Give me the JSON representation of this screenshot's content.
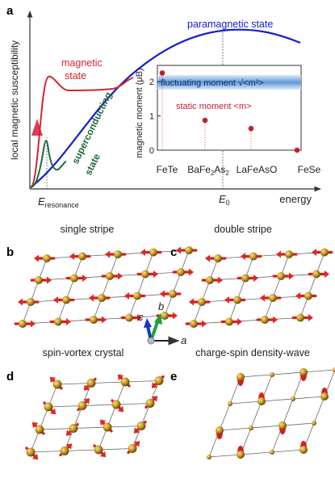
{
  "panel_a": {
    "letter": "a",
    "y_axis_label": "local magnetic susceptibility",
    "x_axis_label": "energy",
    "e_res_main": "E",
    "e_res_sub": "resonance",
    "e0_main": "E",
    "e0_sub": "0",
    "paramagnetic_label": "paramagnetic state",
    "magnetic_label_1": "magnetic",
    "magnetic_label_2": "state",
    "sc_label_1": "superconducting",
    "sc_label_2": "state",
    "colors": {
      "paramagnetic": "#1520d0",
      "magnetic": "#d2262f",
      "superconducting": "#1f6b3a",
      "band": "#6aa4dc"
    },
    "inset": {
      "y_axis_label": "magnetic moment (μB)",
      "y_ticks": [
        "0",
        "1",
        "2"
      ],
      "fluct_label": "fluctuating moment √<m²>",
      "static_label": "static moment <m>",
      "materials": [
        "FeTe",
        "BaFe2As2",
        "LaFeAsO",
        "FeSe"
      ],
      "static_moments": [
        2.25,
        0.87,
        0.63,
        0.0
      ]
    }
  },
  "panels": [
    {
      "letter": "b",
      "title": "single stripe"
    },
    {
      "letter": "c",
      "title": "double stripe"
    },
    {
      "letter": "d",
      "title": "spin-vortex crystal"
    },
    {
      "letter": "e",
      "title": "charge-spin density-wave"
    }
  ],
  "axes_glyph": {
    "a": "a",
    "b": "b",
    "c": "c"
  }
}
